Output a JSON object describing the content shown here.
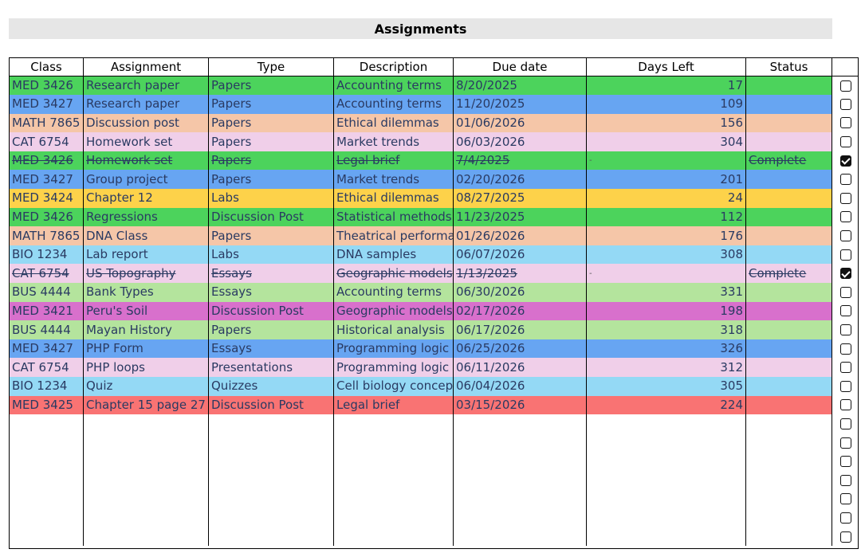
{
  "title": "Assignments",
  "columns": [
    "Class",
    "Assignment",
    "Type",
    "Description",
    "Due date",
    "Days Left",
    "Status"
  ],
  "rows": [
    {
      "cls": "MED 3426",
      "assignment": "Research paper",
      "type": "Papers",
      "description": "Accounting terms",
      "due": "8/20/2025",
      "days": "17",
      "status": "",
      "done": false,
      "color": "#4cd35c"
    },
    {
      "cls": "MED 3427",
      "assignment": "Research paper",
      "type": "Papers",
      "description": "Accounting terms",
      "due": "11/20/2025",
      "days": "109",
      "status": "",
      "done": false,
      "color": "#67a5f2"
    },
    {
      "cls": "MATH 7865",
      "assignment": "Discussion post",
      "type": "Papers",
      "description": "Ethical dilemmas",
      "due": "01/06/2026",
      "days": "156",
      "status": "",
      "done": false,
      "color": "#f5c6a8"
    },
    {
      "cls": "CAT 6754",
      "assignment": "Homework set",
      "type": "Papers",
      "description": "Market trends",
      "due": "06/03/2026",
      "days": "304",
      "status": "",
      "done": false,
      "color": "#f0cfe9"
    },
    {
      "cls": "MED 3426",
      "assignment": "Homework set",
      "type": "Papers",
      "description": "Legal brief",
      "due": "7/4/2025",
      "days": "-",
      "status": "Complete",
      "done": true,
      "color": "#4cd35c"
    },
    {
      "cls": "MED 3427",
      "assignment": "Group project",
      "type": "Papers",
      "description": "Market trends",
      "due": "02/20/2026",
      "days": "201",
      "status": "",
      "done": false,
      "color": "#67a5f2"
    },
    {
      "cls": "MED 3424",
      "assignment": "Chapter 12",
      "type": "Labs",
      "description": "Ethical dilemmas",
      "due": "08/27/2025",
      "days": "24",
      "status": "",
      "done": false,
      "color": "#fdd24a"
    },
    {
      "cls": "MED 3426",
      "assignment": "Regressions",
      "type": "Discussion Post",
      "description": "Statistical methods",
      "due": "11/23/2025",
      "days": "112",
      "status": "",
      "done": false,
      "color": "#4cd35c"
    },
    {
      "cls": "MATH 7865",
      "assignment": "DNA Class",
      "type": "Papers",
      "description": "Theatrical performance",
      "due": "01/26/2026",
      "days": "176",
      "status": "",
      "done": false,
      "color": "#f5c6a8"
    },
    {
      "cls": "BIO 1234",
      "assignment": "Lab report",
      "type": "Labs",
      "description": "DNA samples",
      "due": "06/07/2026",
      "days": "308",
      "status": "",
      "done": false,
      "color": "#94d9f5"
    },
    {
      "cls": "CAT 6754",
      "assignment": "US Topography",
      "type": "Essays",
      "description": "Geographic models",
      "due": "1/13/2025",
      "days": "-",
      "status": "Complete",
      "done": true,
      "color": "#f0cfe9"
    },
    {
      "cls": "BUS 4444",
      "assignment": "Bank Types",
      "type": "Essays",
      "description": "Accounting terms",
      "due": "06/30/2026",
      "days": "331",
      "status": "",
      "done": false,
      "color": "#b4e49d"
    },
    {
      "cls": "MED 3421",
      "assignment": "Peru's Soil",
      "type": "Discussion Post",
      "description": "Geographic models",
      "due": "02/17/2026",
      "days": "198",
      "status": "",
      "done": false,
      "color": "#d870cc"
    },
    {
      "cls": "BUS 4444",
      "assignment": "Mayan History",
      "type": "Papers",
      "description": "Historical analysis",
      "due": "06/17/2026",
      "days": "318",
      "status": "",
      "done": false,
      "color": "#b4e49d"
    },
    {
      "cls": "MED 3427",
      "assignment": "PHP Form",
      "type": "Essays",
      "description": "Programming logic",
      "due": "06/25/2026",
      "days": "326",
      "status": "",
      "done": false,
      "color": "#67a5f2"
    },
    {
      "cls": "CAT 6754",
      "assignment": "PHP loops",
      "type": "Presentations",
      "description": "Programming logic",
      "due": "06/11/2026",
      "days": "312",
      "status": "",
      "done": false,
      "color": "#f0cfe9"
    },
    {
      "cls": "BIO 1234",
      "assignment": "Quiz",
      "type": "Quizzes",
      "description": "Cell biology concepts",
      "due": "06/04/2026",
      "days": "305",
      "status": "",
      "done": false,
      "color": "#94d9f5"
    },
    {
      "cls": "MED 3425",
      "assignment": "Chapter 15 page 27",
      "type": "Discussion Post",
      "description": "Legal brief",
      "due": "03/15/2026",
      "days": "224",
      "status": "",
      "done": false,
      "color": "#f97373"
    }
  ],
  "empty_rows": 7
}
